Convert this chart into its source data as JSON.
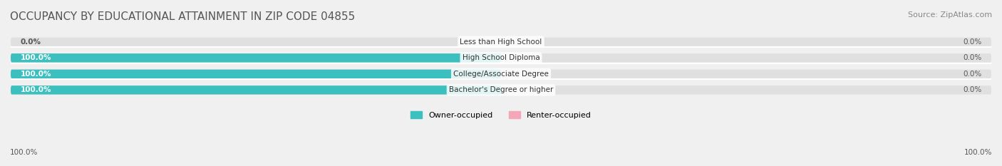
{
  "title": "OCCUPANCY BY EDUCATIONAL ATTAINMENT IN ZIP CODE 04855",
  "source": "Source: ZipAtlas.com",
  "categories": [
    "Less than High School",
    "High School Diploma",
    "College/Associate Degree",
    "Bachelor's Degree or higher"
  ],
  "owner_values": [
    0.0,
    100.0,
    100.0,
    100.0
  ],
  "renter_values": [
    0.0,
    0.0,
    0.0,
    0.0
  ],
  "owner_color": "#3bbfbf",
  "renter_color": "#f4a7b9",
  "background_color": "#f0f0f0",
  "bar_bg_color": "#e0e0e0",
  "title_fontsize": 11,
  "source_fontsize": 8,
  "label_fontsize": 8,
  "bar_height": 0.55,
  "xlim": [
    -100,
    100
  ],
  "left_axis_label": "100.0%",
  "right_axis_label": "100.0%"
}
